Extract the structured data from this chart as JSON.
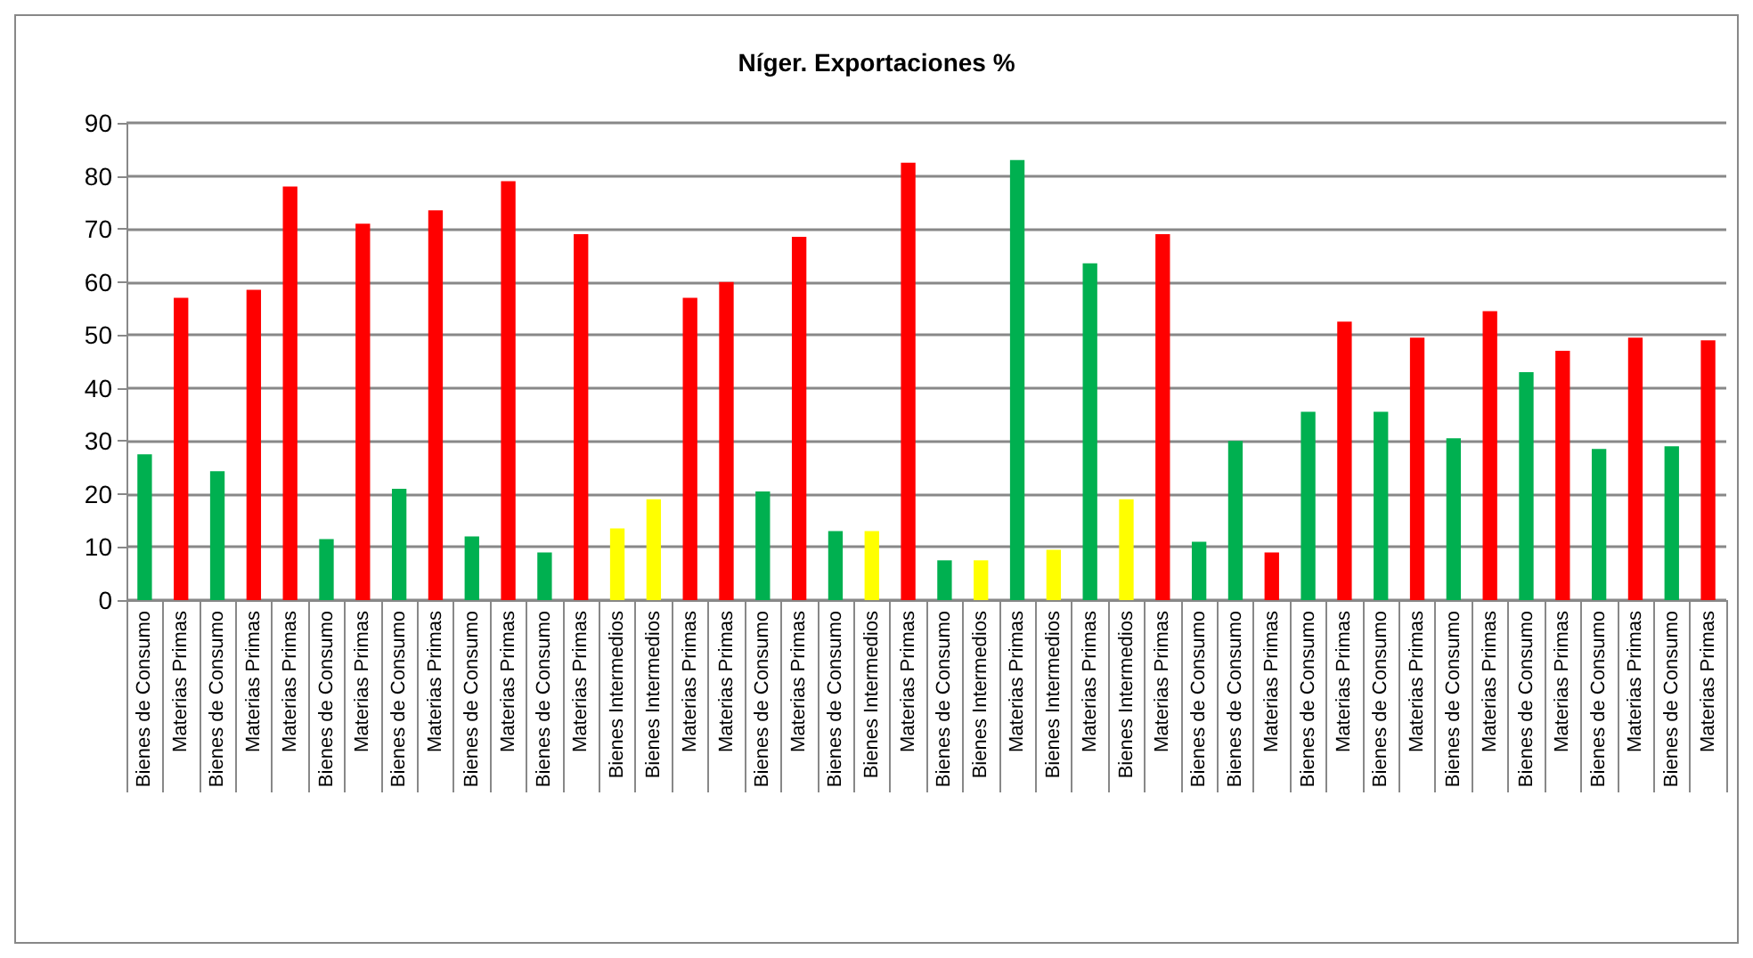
{
  "chart_data": {
    "type": "bar",
    "title": "Níger. Exportaciones %",
    "categories": [
      "Bienes de Consumo",
      "Materias Primas",
      "Bienes de Consumo",
      "Materias Primas",
      "Materias Primas",
      "Bienes de Consumo",
      "Materias Primas",
      "Bienes de Consumo",
      "Materias Primas",
      "Bienes de Consumo",
      "Materias Primas",
      "Bienes de Consumo",
      "Materias Primas",
      "Bienes Intermedios",
      "Bienes Intermedios",
      "Materias Primas",
      "Materias Primas",
      "Bienes de Consumo",
      "Materias Primas",
      "Bienes de Consumo",
      "Bienes Intermedios",
      "Materias Primas",
      "Bienes de Consumo",
      "Bienes Intermedios",
      "Materias Primas",
      "Bienes Intermedios",
      "Materias Primas",
      "Bienes Intermedios",
      "Materias Primas",
      "Bienes de Consumo",
      "Bienes de Consumo",
      "Materias Primas",
      "Bienes de Consumo",
      "Materias Primas",
      "Bienes de Consumo",
      "Materias Primas",
      "Bienes de Consumo",
      "Materias Primas",
      "Bienes de Consumo",
      "Materias Primas",
      "Bienes de Consumo",
      "Materias Primas",
      "Bienes de Consumo",
      "Materias Primas"
    ],
    "values": [
      27.5,
      57,
      24.3,
      58.5,
      78,
      11.5,
      71,
      21,
      73.5,
      12,
      79,
      9,
      69,
      13.5,
      19,
      57,
      60,
      20.5,
      68.5,
      13,
      13,
      82.5,
      7.5,
      7.5,
      83,
      9.5,
      63.5,
      19,
      69,
      11,
      30,
      9,
      35.5,
      52.5,
      35.5,
      49.5,
      30.5,
      54.5,
      43,
      47,
      28.5,
      49.5,
      29,
      49
    ],
    "colors": [
      "#00b050",
      "#ff0000",
      "#00b050",
      "#ff0000",
      "#ff0000",
      "#00b050",
      "#ff0000",
      "#00b050",
      "#ff0000",
      "#00b050",
      "#ff0000",
      "#00b050",
      "#ff0000",
      "#ffff00",
      "#ffff00",
      "#ff0000",
      "#ff0000",
      "#00b050",
      "#ff0000",
      "#00b050",
      "#ffff00",
      "#ff0000",
      "#00b050",
      "#ffff00",
      "#00b050",
      "#ffff00",
      "#00b050",
      "#ffff00",
      "#ff0000",
      "#00b050",
      "#00b050",
      "#ff0000",
      "#00b050",
      "#ff0000",
      "#00b050",
      "#ff0000",
      "#00b050",
      "#ff0000",
      "#00b050",
      "#ff0000",
      "#00b050",
      "#ff0000",
      "#00b050",
      "#ff0000"
    ],
    "ylim": [
      0,
      90
    ],
    "yticks": [
      0,
      10,
      20,
      30,
      40,
      50,
      60,
      70,
      80,
      90
    ],
    "grid": "y"
  }
}
